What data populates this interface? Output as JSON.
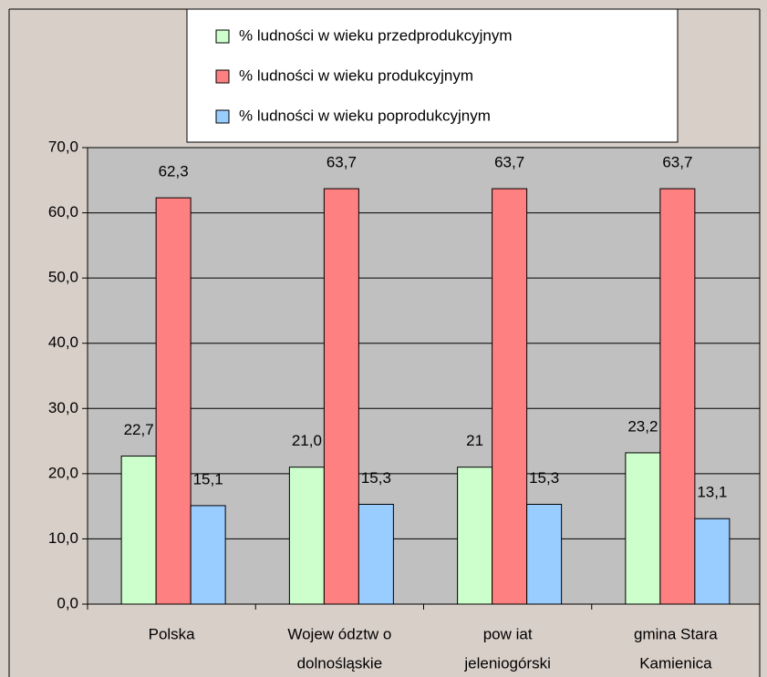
{
  "chart_data": {
    "type": "bar",
    "categories": [
      [
        "Polska"
      ],
      [
        "Wojew ództw o",
        "dolnośląskie"
      ],
      [
        "pow iat",
        "jeleniogórski"
      ],
      [
        "gmina Stara",
        "Kamienica"
      ]
    ],
    "series": [
      {
        "name": "% ludności w wieku przedprodukcyjnym",
        "color": "#ccffcc",
        "values": [
          22.7,
          21.0,
          21,
          23.2
        ],
        "value_labels": [
          "22,7",
          "21,0",
          "21",
          "23,2"
        ]
      },
      {
        "name": "% ludności w wieku produkcyjnym",
        "color": "#ff8080",
        "values": [
          62.3,
          63.7,
          63.7,
          63.7
        ],
        "value_labels": [
          "62,3",
          "63,7",
          "63,7",
          "63,7"
        ]
      },
      {
        "name": "% ludności w wieku poprodukcyjnym",
        "color": "#99ccff",
        "values": [
          15.1,
          15.3,
          15.3,
          13.1
        ],
        "value_labels": [
          "15,1",
          "15,3",
          "15,3",
          "13,1"
        ]
      }
    ],
    "ylim": [
      0,
      70
    ],
    "yticks": [
      {
        "value": 0,
        "label": "0,0"
      },
      {
        "value": 10,
        "label": "10,0"
      },
      {
        "value": 20,
        "label": "20,0"
      },
      {
        "value": 30,
        "label": "30,0"
      },
      {
        "value": 40,
        "label": "40,0"
      },
      {
        "value": 50,
        "label": "50,0"
      },
      {
        "value": 60,
        "label": "60,0"
      },
      {
        "value": 70,
        "label": "70,0"
      }
    ],
    "grid": true
  }
}
